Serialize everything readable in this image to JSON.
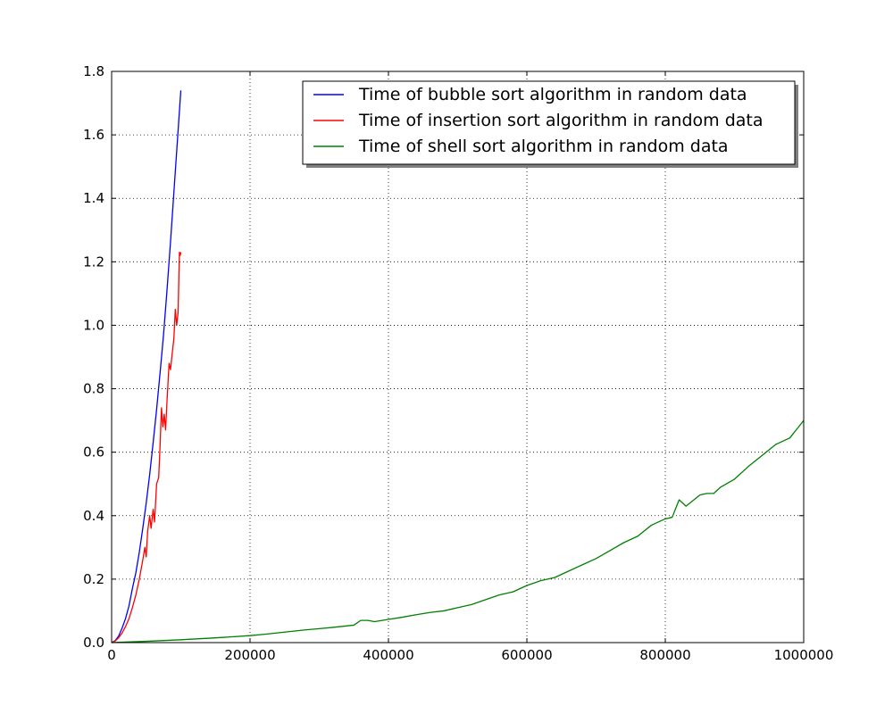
{
  "chart_data": {
    "type": "line",
    "title": "",
    "xlabel": "",
    "ylabel": "",
    "xlim": [
      0,
      1000000
    ],
    "ylim": [
      0,
      1.8
    ],
    "grid": true,
    "legend_position": "top-right",
    "x_ticks": [
      "0",
      "200000",
      "400000",
      "600000",
      "800000",
      "1000000"
    ],
    "y_ticks": [
      "0.0",
      "0.2",
      "0.4",
      "0.6",
      "0.8",
      "1.0",
      "1.2",
      "1.4",
      "1.6",
      "1.8"
    ],
    "series": [
      {
        "name": "Time of bubble sort algorithm in random data",
        "color": "#0000ff",
        "x": [
          0,
          5000,
          10000,
          15000,
          20000,
          25000,
          30000,
          35000,
          40000,
          45000,
          50000,
          55000,
          60000,
          65000,
          70000,
          75000,
          80000,
          85000,
          90000,
          95000,
          100000
        ],
        "y": [
          0.0,
          0.006,
          0.02,
          0.045,
          0.075,
          0.115,
          0.17,
          0.22,
          0.285,
          0.36,
          0.44,
          0.53,
          0.63,
          0.735,
          0.85,
          0.97,
          1.11,
          1.26,
          1.42,
          1.58,
          1.74
        ]
      },
      {
        "name": "Time of insertion sort algorithm in random data",
        "color": "#ff0000",
        "x": [
          0,
          5000,
          10000,
          15000,
          20000,
          25000,
          30000,
          35000,
          40000,
          45000,
          48000,
          50000,
          52000,
          55000,
          57000,
          60000,
          62000,
          65000,
          68000,
          70000,
          72000,
          74000,
          76000,
          78000,
          80000,
          83000,
          85000,
          88000,
          90000,
          92000,
          94000,
          96000,
          98000,
          99000,
          100000
        ],
        "y": [
          0.0,
          0.005,
          0.015,
          0.03,
          0.05,
          0.075,
          0.11,
          0.15,
          0.2,
          0.26,
          0.3,
          0.27,
          0.35,
          0.4,
          0.36,
          0.42,
          0.38,
          0.5,
          0.52,
          0.62,
          0.74,
          0.68,
          0.72,
          0.67,
          0.76,
          0.88,
          0.86,
          0.92,
          0.96,
          1.05,
          1.0,
          1.04,
          1.23,
          1.22,
          1.23
        ]
      },
      {
        "name": "Time of shell sort algorithm in random data",
        "color": "#008000",
        "x": [
          0,
          10000,
          50000,
          100000,
          150000,
          200000,
          220000,
          250000,
          280000,
          300000,
          320000,
          350000,
          360000,
          370000,
          380000,
          400000,
          420000,
          440000,
          460000,
          480000,
          500000,
          520000,
          540000,
          560000,
          580000,
          600000,
          620000,
          640000,
          660000,
          680000,
          700000,
          720000,
          740000,
          760000,
          780000,
          800000,
          810000,
          820000,
          830000,
          850000,
          860000,
          870000,
          880000,
          900000,
          920000,
          940000,
          960000,
          980000,
          1000000
        ],
        "y": [
          0.0,
          0.001,
          0.004,
          0.009,
          0.015,
          0.022,
          0.026,
          0.033,
          0.04,
          0.044,
          0.048,
          0.055,
          0.07,
          0.07,
          0.066,
          0.073,
          0.08,
          0.088,
          0.095,
          0.1,
          0.11,
          0.12,
          0.135,
          0.15,
          0.16,
          0.18,
          0.195,
          0.205,
          0.225,
          0.245,
          0.265,
          0.29,
          0.315,
          0.335,
          0.37,
          0.39,
          0.395,
          0.45,
          0.43,
          0.465,
          0.47,
          0.47,
          0.49,
          0.515,
          0.555,
          0.59,
          0.625,
          0.645,
          0.7
        ]
      }
    ]
  }
}
